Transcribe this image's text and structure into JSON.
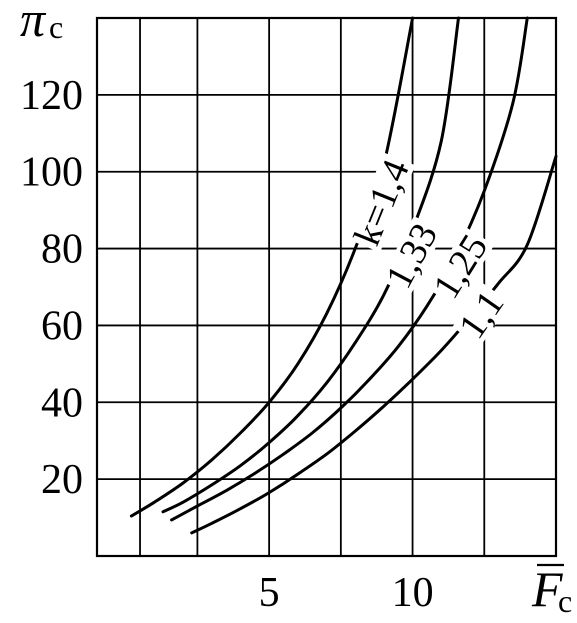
{
  "chart_data": {
    "type": "line",
    "ylabel": {
      "symbol": "π",
      "subscript": "c"
    },
    "xlabel": {
      "symbol": "F",
      "subscript": "c",
      "overline": true
    },
    "xlim": [
      -1,
      15
    ],
    "ylim": [
      0,
      140
    ],
    "x_grid": [
      0.5,
      2.5,
      5,
      7.5,
      10,
      12.5,
      15
    ],
    "y_grid": [
      20,
      40,
      60,
      80,
      100,
      120,
      140
    ],
    "x_ticks": [
      {
        "value": 5,
        "label": "5"
      },
      {
        "value": 10,
        "label": "10"
      }
    ],
    "y_ticks": [
      {
        "value": 20,
        "label": "20"
      },
      {
        "value": 40,
        "label": "40"
      },
      {
        "value": 60,
        "label": "60"
      },
      {
        "value": 80,
        "label": "80"
      },
      {
        "value": 100,
        "label": "100"
      },
      {
        "value": 120,
        "label": "120"
      }
    ],
    "grid": true,
    "series": [
      {
        "name": "k=1,4",
        "x": [
          0.2,
          1.0,
          2.0,
          3.0,
          4.0,
          5.0,
          6.0,
          7.0,
          8.0,
          9.0,
          10.0
        ],
        "y": [
          10.4,
          14,
          19,
          25,
          32,
          40,
          50,
          63,
          80,
          102,
          140
        ]
      },
      {
        "name": "1,33",
        "x": [
          1.3,
          2.0,
          3.0,
          4.0,
          5.0,
          6.0,
          7.0,
          8.0,
          9.0,
          10.0,
          11.0,
          11.6
        ],
        "y": [
          11.5,
          14,
          18.5,
          23.5,
          29.5,
          36.5,
          45,
          55.5,
          68,
          85,
          108,
          140
        ]
      },
      {
        "name": "1,25",
        "x": [
          1.6,
          2.5,
          3.5,
          4.5,
          5.5,
          6.5,
          7.5,
          8.5,
          9.5,
          10.5,
          11.5,
          12.5,
          13.5,
          14.0
        ],
        "y": [
          9.4,
          13,
          17,
          21.5,
          26.5,
          32,
          38.5,
          46,
          54.5,
          65,
          78,
          95,
          118,
          140
        ]
      },
      {
        "name": "1,1",
        "x": [
          2.3,
          3.0,
          4.0,
          5.0,
          6.0,
          7.0,
          8.0,
          9.0,
          10.0,
          11.0,
          12.0,
          13.0,
          14.0,
          15.0
        ],
        "y": [
          6,
          8.5,
          12.3,
          16.5,
          21.3,
          26.5,
          32.5,
          39,
          46,
          53.5,
          62,
          71,
          81,
          104
        ]
      }
    ]
  }
}
